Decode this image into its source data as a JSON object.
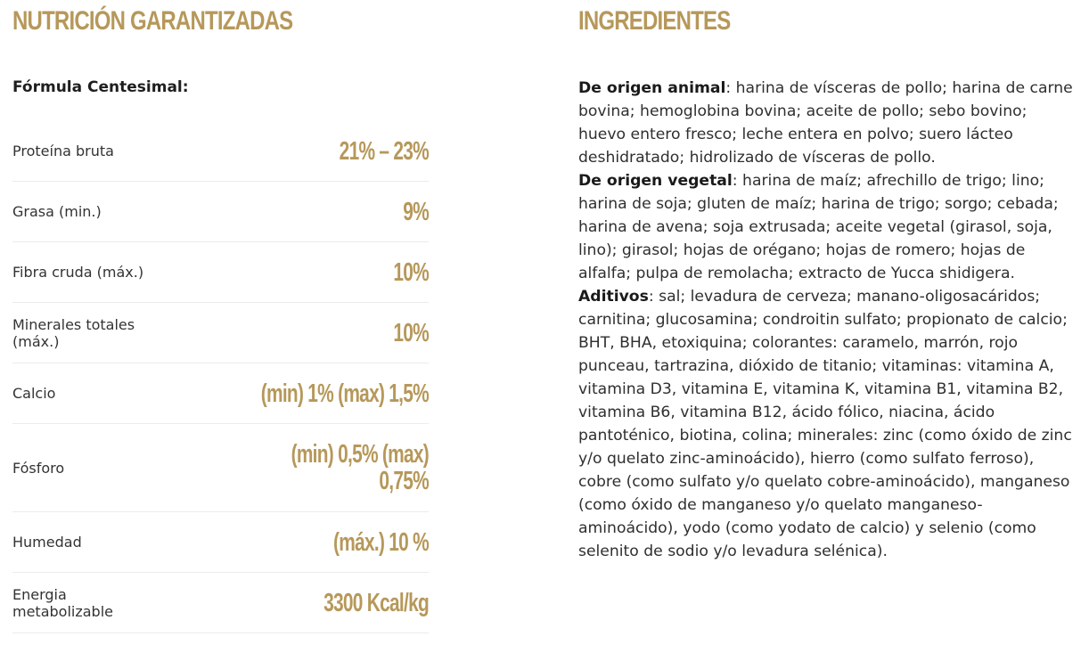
{
  "nutrition": {
    "title": "NUTRICIÓN GARANTIZADAS",
    "subtitle": "Fórmula Centesimal:",
    "rows": [
      {
        "label": "Proteína bruta",
        "value": "21% – 23%"
      },
      {
        "label": "Grasa (min.)",
        "value": "9%"
      },
      {
        "label": "Fibra cruda (máx.)",
        "value": "10%"
      },
      {
        "label": "Minerales totales (máx.)",
        "value": "10%"
      },
      {
        "label": "Calcio",
        "value": "(min) 1% (max) 1,5%"
      },
      {
        "label": "Fósforo",
        "value": "(min) 0,5% (max) 0,75%"
      },
      {
        "label": "Humedad",
        "value": "(máx.) 10 %"
      },
      {
        "label": "Energia metabolizable",
        "value": "3300 Kcal/kg"
      }
    ]
  },
  "ingredients": {
    "title": "INGREDIENTES",
    "sections": [
      {
        "label": "De origen animal",
        "text": ": harina de vísceras de pollo; harina de carne bovina; hemoglobina bovina; aceite de pollo; sebo bovino; huevo entero fresco; leche entera en polvo; suero lácteo deshidratado; hidrolizado de vísceras de pollo."
      },
      {
        "label": "De origen vegetal",
        "text": ": harina de maíz; afrechillo de trigo; lino; harina de soja; gluten de maíz; harina de trigo; sorgo; cebada; harina de avena; soja extrusada; aceite vegetal (girasol, soja, lino); girasol; hojas de orégano; hojas de romero; hojas de alfalfa; pulpa de remolacha; extracto de Yucca shidigera."
      },
      {
        "label": "Aditivos",
        "text": ": sal; levadura de cerveza; manano-oligosacáridos; carnitina; glucosamina; condroitin sulfato; propionato de calcio; BHT, BHA, etoxiquina; colorantes: caramelo, marrón, rojo punceau, tartrazina, dióxido de titanio; vitaminas: vitamina A, vitamina D3, vitamina E, vitamina K, vitamina B1, vitamina B2, vitamina B6, vitamina B12, ácido fólico, niacina, ácido pantoténico, biotina, colina; minerales: zinc (como óxido de zinc y/o quelato zinc-aminoácido), hierro (como sulfato ferroso), cobre (como sulfato y/o quelato cobre-aminoácido), manganeso (como óxido de manganeso y/o quelato manganeso-aminoácido), yodo (como yodato de calcio) y selenio (como selenito de sodio y/o levadura selénica)."
      }
    ]
  },
  "colors": {
    "accent": "#b6985a",
    "text": "#2b2b2b",
    "divider": "#ececec"
  }
}
